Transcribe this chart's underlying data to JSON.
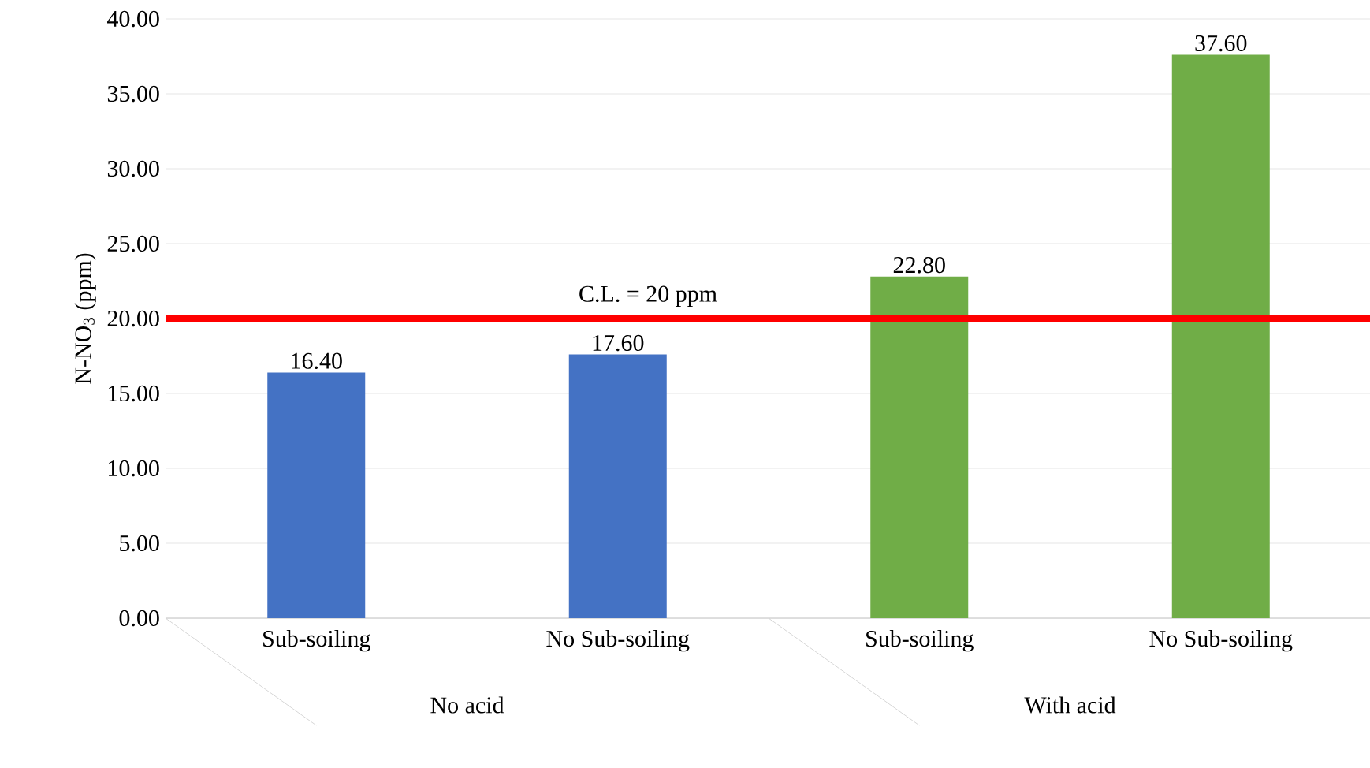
{
  "chart_data": {
    "type": "bar",
    "ylabel": "N-NO$_{3}$ (ppm)",
    "categories": [
      "Sub-soiling",
      "No Sub-soiling",
      "Sub-soiling",
      "No Sub-soiling"
    ],
    "values": [
      16.4,
      17.6,
      22.8,
      37.6
    ],
    "colors": [
      "#4472c4",
      "#4472c4",
      "#70ad47",
      "#70ad47"
    ],
    "value_labels": [
      "16.40",
      "17.60",
      "22.80",
      "37.60"
    ],
    "ylim": [
      0,
      40
    ],
    "yticks": [
      {
        "value": 0,
        "label": "0.00"
      },
      {
        "value": 5,
        "label": "5.00"
      },
      {
        "value": 10,
        "label": "10.00"
      },
      {
        "value": 15,
        "label": "15.00"
      },
      {
        "value": 20,
        "label": "20.00"
      },
      {
        "value": 25,
        "label": "25.00"
      },
      {
        "value": 30,
        "label": "30.00"
      },
      {
        "value": 35,
        "label": "35.00"
      },
      {
        "value": 40,
        "label": "40.00"
      }
    ],
    "grid": "y",
    "ref_lines": [
      {
        "axis": "y",
        "value": 20,
        "label": "C.L. = 20 ppm",
        "color": "#ff0000"
      }
    ],
    "annotations": [
      "No acid",
      "With acid"
    ]
  }
}
